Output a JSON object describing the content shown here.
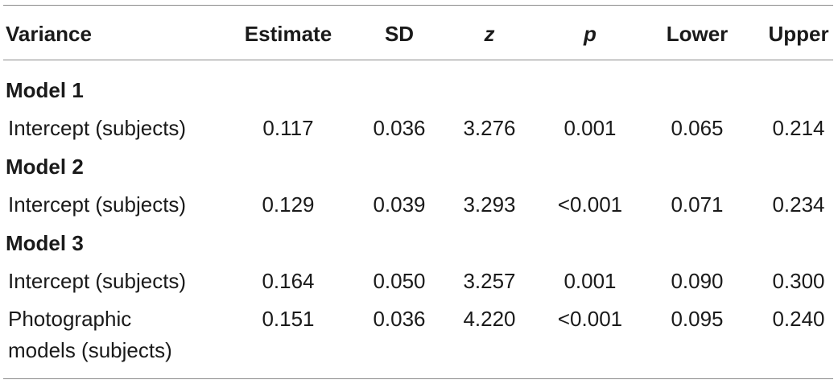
{
  "table": {
    "headers": {
      "variance": "Variance",
      "estimate": "Estimate",
      "sd": "SD",
      "z": "z",
      "p": "p",
      "lower": "Lower",
      "upper": "Upper"
    },
    "models": [
      {
        "title": "Model 1",
        "rows": [
          {
            "label": "Intercept (subjects)",
            "estimate": "0.117",
            "sd": "0.036",
            "z": "3.276",
            "p": "0.001",
            "lower": "0.065",
            "upper": "0.214"
          }
        ]
      },
      {
        "title": "Model 2",
        "rows": [
          {
            "label": "Intercept (subjects)",
            "estimate": "0.129",
            "sd": "0.039",
            "z": "3.293",
            "p": "<0.001",
            "lower": "0.071",
            "upper": "0.234"
          }
        ]
      },
      {
        "title": "Model 3",
        "rows": [
          {
            "label": "Intercept (subjects)",
            "estimate": "0.164",
            "sd": "0.050",
            "z": "3.257",
            "p": "0.001",
            "lower": "0.090",
            "upper": "0.300"
          },
          {
            "label_line1": "Photographic",
            "label_line2": "models (subjects)",
            "estimate": "0.151",
            "sd": "0.036",
            "z": "4.220",
            "p": "<0.001",
            "lower": "0.095",
            "upper": "0.240"
          }
        ]
      }
    ]
  }
}
